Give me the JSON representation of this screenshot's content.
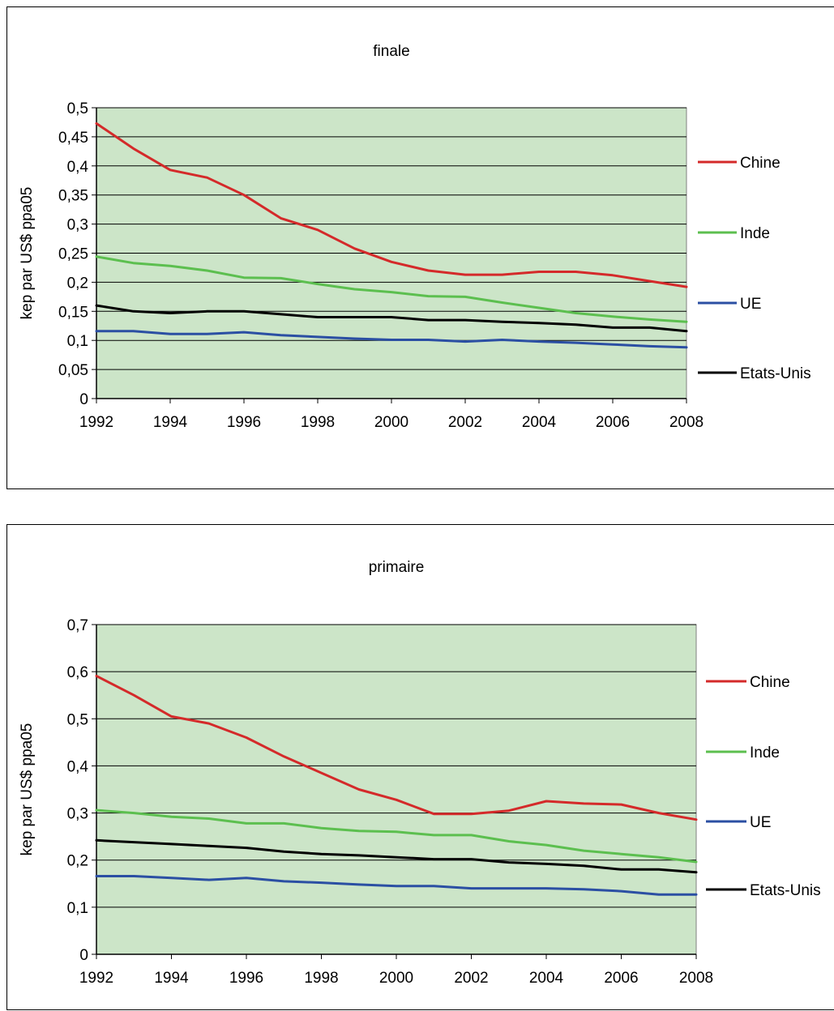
{
  "chart_data": [
    {
      "type": "line",
      "title": "finale",
      "xlabel": "",
      "ylabel": "kep par US$ ppa05",
      "ylim": [
        0,
        0.5
      ],
      "yticks": [
        "0",
        "0,05",
        "0,1",
        "0,15",
        "0,2",
        "0,25",
        "0,3",
        "0,35",
        "0,4",
        "0,45",
        "0,5"
      ],
      "xlim": [
        1992,
        2008
      ],
      "xticks": [
        "1992",
        "1994",
        "1996",
        "1998",
        "2000",
        "2002",
        "2004",
        "2006",
        "2008"
      ],
      "x": [
        1992,
        1993,
        1994,
        1995,
        1996,
        1997,
        1998,
        1999,
        2000,
        2001,
        2002,
        2003,
        2004,
        2005,
        2006,
        2007,
        2008
      ],
      "plot_bg": "#cce5c8",
      "grid": true,
      "legend": "right",
      "series": [
        {
          "name": "Chine",
          "color": "#d42a2a",
          "values": [
            0.473,
            0.43,
            0.393,
            0.38,
            0.35,
            0.31,
            0.29,
            0.258,
            0.235,
            0.22,
            0.213,
            0.213,
            0.218,
            0.218,
            0.212,
            0.202,
            0.192
          ]
        },
        {
          "name": "Inde",
          "color": "#5cbf4f",
          "values": [
            0.244,
            0.233,
            0.228,
            0.22,
            0.208,
            0.207,
            0.197,
            0.188,
            0.183,
            0.176,
            0.175,
            0.165,
            0.156,
            0.147,
            0.141,
            0.136,
            0.132
          ]
        },
        {
          "name": "UE",
          "color": "#2b4fa3",
          "values": [
            0.116,
            0.116,
            0.111,
            0.111,
            0.114,
            0.109,
            0.106,
            0.103,
            0.101,
            0.101,
            0.098,
            0.101,
            0.098,
            0.096,
            0.093,
            0.09,
            0.088
          ]
        },
        {
          "name": "Etats-Unis",
          "color": "#000000",
          "values": [
            0.16,
            0.15,
            0.147,
            0.15,
            0.15,
            0.145,
            0.14,
            0.14,
            0.14,
            0.135,
            0.135,
            0.132,
            0.13,
            0.127,
            0.122,
            0.122,
            0.116
          ]
        }
      ]
    },
    {
      "type": "line",
      "title": "primaire",
      "xlabel": "",
      "ylabel": "kep par US$ ppa05",
      "ylim": [
        0,
        0.7
      ],
      "yticks": [
        "0",
        "0,1",
        "0,2",
        "0,3",
        "0,4",
        "0,5",
        "0,6",
        "0,7"
      ],
      "xlim": [
        1992,
        2008
      ],
      "xticks": [
        "1992",
        "1994",
        "1996",
        "1998",
        "2000",
        "2002",
        "2004",
        "2006",
        "2008"
      ],
      "x": [
        1992,
        1993,
        1994,
        1995,
        1996,
        1997,
        1998,
        1999,
        2000,
        2001,
        2002,
        2003,
        2004,
        2005,
        2006,
        2007,
        2008
      ],
      "plot_bg": "#cce5c8",
      "grid": true,
      "legend": "right",
      "series": [
        {
          "name": "Chine",
          "color": "#d42a2a",
          "values": [
            0.591,
            0.55,
            0.505,
            0.49,
            0.46,
            0.42,
            0.385,
            0.35,
            0.328,
            0.298,
            0.298,
            0.305,
            0.325,
            0.32,
            0.318,
            0.3,
            0.286
          ]
        },
        {
          "name": "Inde",
          "color": "#5cbf4f",
          "values": [
            0.306,
            0.3,
            0.292,
            0.288,
            0.278,
            0.278,
            0.268,
            0.262,
            0.26,
            0.253,
            0.253,
            0.24,
            0.232,
            0.22,
            0.213,
            0.206,
            0.196
          ]
        },
        {
          "name": "UE",
          "color": "#2b4fa3",
          "values": [
            0.166,
            0.166,
            0.162,
            0.158,
            0.162,
            0.155,
            0.152,
            0.148,
            0.145,
            0.145,
            0.14,
            0.14,
            0.14,
            0.138,
            0.134,
            0.127,
            0.127
          ]
        },
        {
          "name": "Etats-Unis",
          "color": "#000000",
          "values": [
            0.242,
            0.238,
            0.234,
            0.23,
            0.226,
            0.218,
            0.213,
            0.21,
            0.206,
            0.202,
            0.202,
            0.195,
            0.192,
            0.188,
            0.18,
            0.18,
            0.174
          ]
        }
      ]
    }
  ]
}
